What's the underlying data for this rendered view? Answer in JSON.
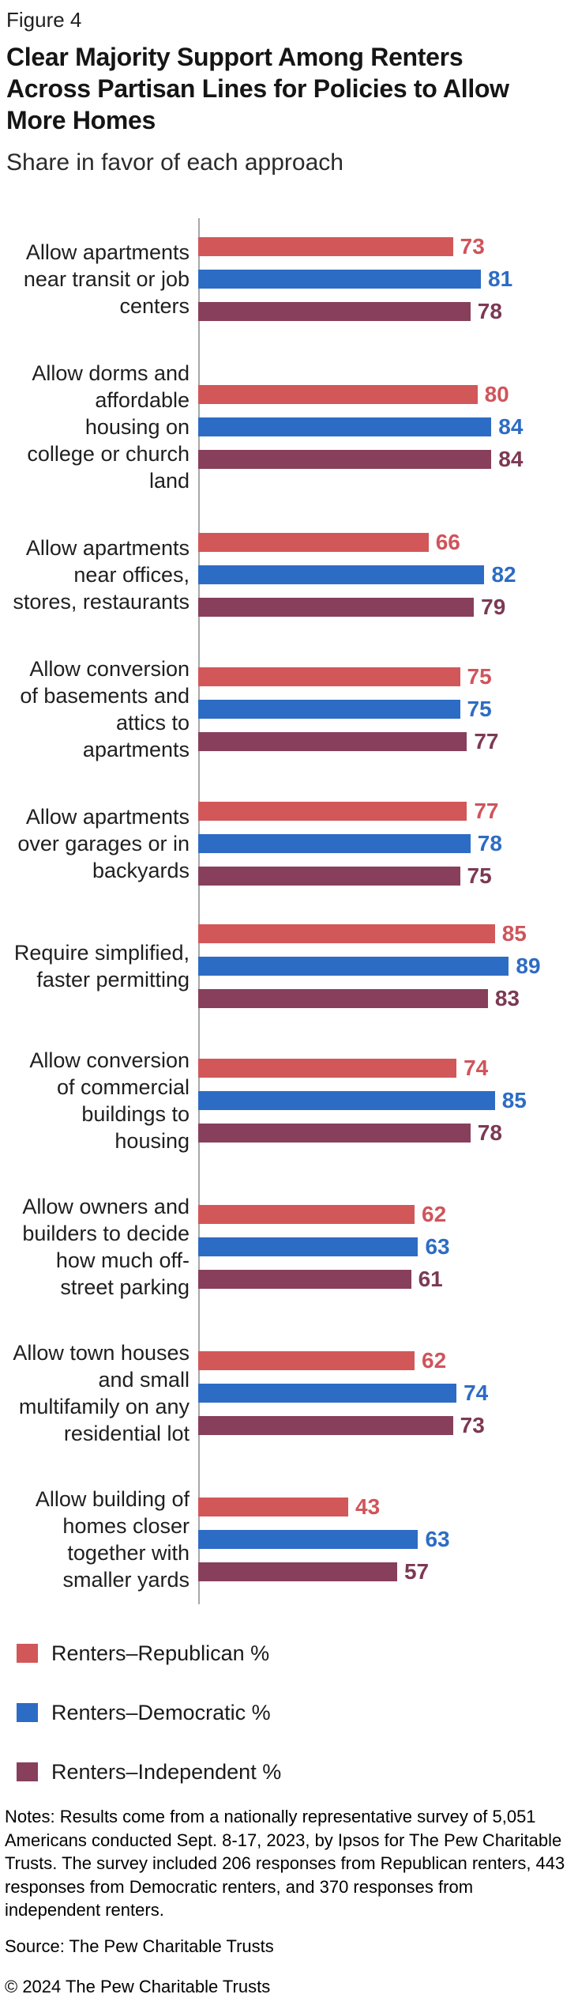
{
  "figure_label": "Figure 4",
  "header": {
    "title_lines": [
      "Clear Majority Support Among Renters",
      "Across Partisan Lines for Policies to Allow",
      "More Homes"
    ],
    "subtitle": "Share in favor of each approach"
  },
  "chart_data": {
    "type": "bar",
    "orientation": "horizontal",
    "title": "Clear Majority Support Among Renters Across Partisan Lines for Policies to Allow More Homes",
    "subtitle": "Share in favor of each approach",
    "unit": "percent",
    "xlim": [
      0,
      100
    ],
    "grid": false,
    "legend_position": "bottom",
    "axis_line_color": "#a8a8a8",
    "series": [
      {
        "name": "Renters–Republican %",
        "key": "republican",
        "color": "#d25759",
        "label_color": "#d0545a"
      },
      {
        "name": "Renters–Democratic %",
        "key": "democratic",
        "color": "#2d6cc4",
        "label_color": "#2d6cc4"
      },
      {
        "name": "Renters–Independent %",
        "key": "independent",
        "color": "#873f5c",
        "label_color": "#7c3954"
      }
    ],
    "groups": [
      {
        "label": "Allow apartments near transit or job centers",
        "label_lines": [
          "Allow apartments",
          "near transit or job",
          "centers"
        ],
        "values": [
          73,
          81,
          78
        ]
      },
      {
        "label": "Allow dorms and affordable housing on college or church land",
        "label_lines": [
          "Allow dorms and",
          "affordable",
          "housing on",
          "college or church",
          "land"
        ],
        "values": [
          80,
          84,
          84
        ]
      },
      {
        "label": "Allow apartments near offices, stores, restaurants",
        "label_lines": [
          "Allow apartments",
          "near offices,",
          "stores, restaurants"
        ],
        "values": [
          66,
          82,
          79
        ]
      },
      {
        "label": "Allow conversion of basements and attics to apartments",
        "label_lines": [
          "Allow conversion",
          "of basements and",
          "attics to",
          "apartments"
        ],
        "values": [
          75,
          75,
          77
        ]
      },
      {
        "label": "Allow apartments over garages or in backyards",
        "label_lines": [
          "Allow apartments",
          "over garages or in",
          "backyards"
        ],
        "values": [
          77,
          78,
          75
        ]
      },
      {
        "label": "Require simplified, faster permitting",
        "label_lines": [
          "Require simplified,",
          "faster permitting"
        ],
        "values": [
          85,
          89,
          83
        ]
      },
      {
        "label": "Allow conversion of commercial buildings to housing",
        "label_lines": [
          "Allow conversion",
          "of commercial",
          "buildings to",
          "housing"
        ],
        "values": [
          74,
          85,
          78
        ]
      },
      {
        "label": "Allow owners and builders to decide how much off-street parking",
        "label_lines": [
          "Allow owners and",
          "builders to decide",
          "how much off-",
          "street parking"
        ],
        "values": [
          62,
          63,
          61
        ]
      },
      {
        "label": "Allow town houses and small multifamily on any residential lot",
        "label_lines": [
          "Allow town houses",
          "and small",
          "multifamily on any",
          "residential lot"
        ],
        "values": [
          62,
          74,
          73
        ]
      },
      {
        "label": "Allow building of homes closer together with smaller yards",
        "label_lines": [
          "Allow building of",
          "homes closer",
          "together with",
          "smaller yards"
        ],
        "values": [
          43,
          63,
          57
        ]
      }
    ]
  },
  "footer": {
    "notes": "Notes: Results come from a nationally representative survey of 5,051 Americans conducted Sept. 8-17, 2023, by Ipsos for The Pew Charitable Trusts. The survey included 206 responses from Republican renters, 443 responses from Democratic renters, and 370 responses from independent renters.",
    "source": "Source: The Pew Charitable Trusts",
    "copyright": "© 2024 The Pew Charitable Trusts"
  }
}
